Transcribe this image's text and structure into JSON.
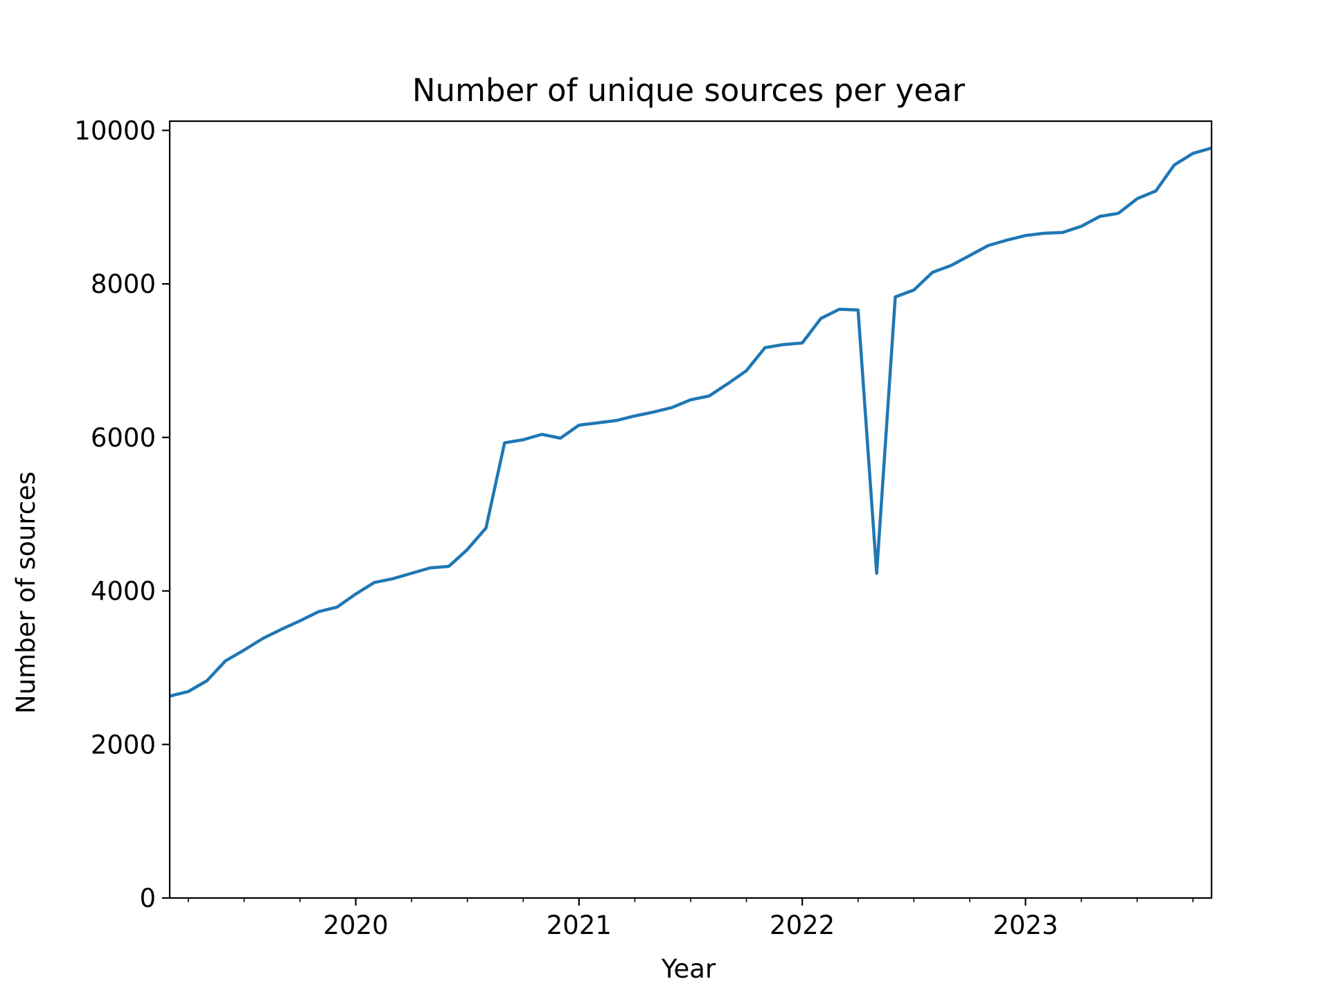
{
  "chart_data": {
    "type": "line",
    "title": "Number of unique sources per year",
    "xlabel": "Year",
    "ylabel": "Number of sources",
    "xlim": [
      "2019-03",
      "2023-11"
    ],
    "ylim": [
      0,
      10120
    ],
    "grid": false,
    "y_ticks": [
      0,
      2000,
      4000,
      6000,
      8000,
      10000
    ],
    "y_tick_labels": [
      "0",
      "2000",
      "4000",
      "6000",
      "8000",
      "10000"
    ],
    "x_ticks": [
      "2020-01",
      "2021-01",
      "2022-01",
      "2023-01"
    ],
    "x_tick_labels": [
      "2020",
      "2021",
      "2022",
      "2023"
    ],
    "x_minor_ticks": [
      "2019-04",
      "2019-07",
      "2019-10",
      "2020-04",
      "2020-07",
      "2020-10",
      "2021-04",
      "2021-07",
      "2021-10",
      "2022-04",
      "2022-07",
      "2022-10",
      "2023-04",
      "2023-07",
      "2023-10"
    ],
    "colors": {
      "line": "#1f77b4",
      "axes": "#000000",
      "background": "#ffffff"
    },
    "series": [
      {
        "x": [
          "2019-03",
          "2019-04",
          "2019-05",
          "2019-06",
          "2019-07",
          "2019-08",
          "2019-09",
          "2019-10",
          "2019-11",
          "2019-12",
          "2020-01",
          "2020-02",
          "2020-03",
          "2020-04",
          "2020-05",
          "2020-06",
          "2020-07",
          "2020-08",
          "2020-09",
          "2020-10",
          "2020-11",
          "2020-12",
          "2021-01",
          "2021-02",
          "2021-03",
          "2021-04",
          "2021-05",
          "2021-06",
          "2021-07",
          "2021-08",
          "2021-09",
          "2021-10",
          "2021-11",
          "2021-12",
          "2022-01",
          "2022-02",
          "2022-03",
          "2022-04",
          "2022-05",
          "2022-06",
          "2022-07",
          "2022-08",
          "2022-09",
          "2022-10",
          "2022-11",
          "2022-12",
          "2023-01",
          "2023-02",
          "2023-03",
          "2023-04",
          "2023-05",
          "2023-06",
          "2023-07",
          "2023-08",
          "2023-09",
          "2023-10",
          "2023-11"
        ],
        "values": [
          2630,
          2690,
          2830,
          3090,
          3230,
          3380,
          3500,
          3610,
          3730,
          3790,
          3960,
          4110,
          4160,
          4230,
          4300,
          4320,
          4540,
          4820,
          5930,
          5970,
          6040,
          5990,
          6160,
          6190,
          6220,
          6280,
          6330,
          6390,
          6490,
          6540,
          6700,
          6870,
          7170,
          7210,
          7230,
          7550,
          7670,
          7660,
          4230,
          7830,
          7920,
          8150,
          8240,
          8370,
          8500,
          8570,
          8630,
          8660,
          8670,
          8750,
          8880,
          8920,
          9110,
          9210,
          9550,
          9700,
          9770
        ]
      }
    ]
  }
}
